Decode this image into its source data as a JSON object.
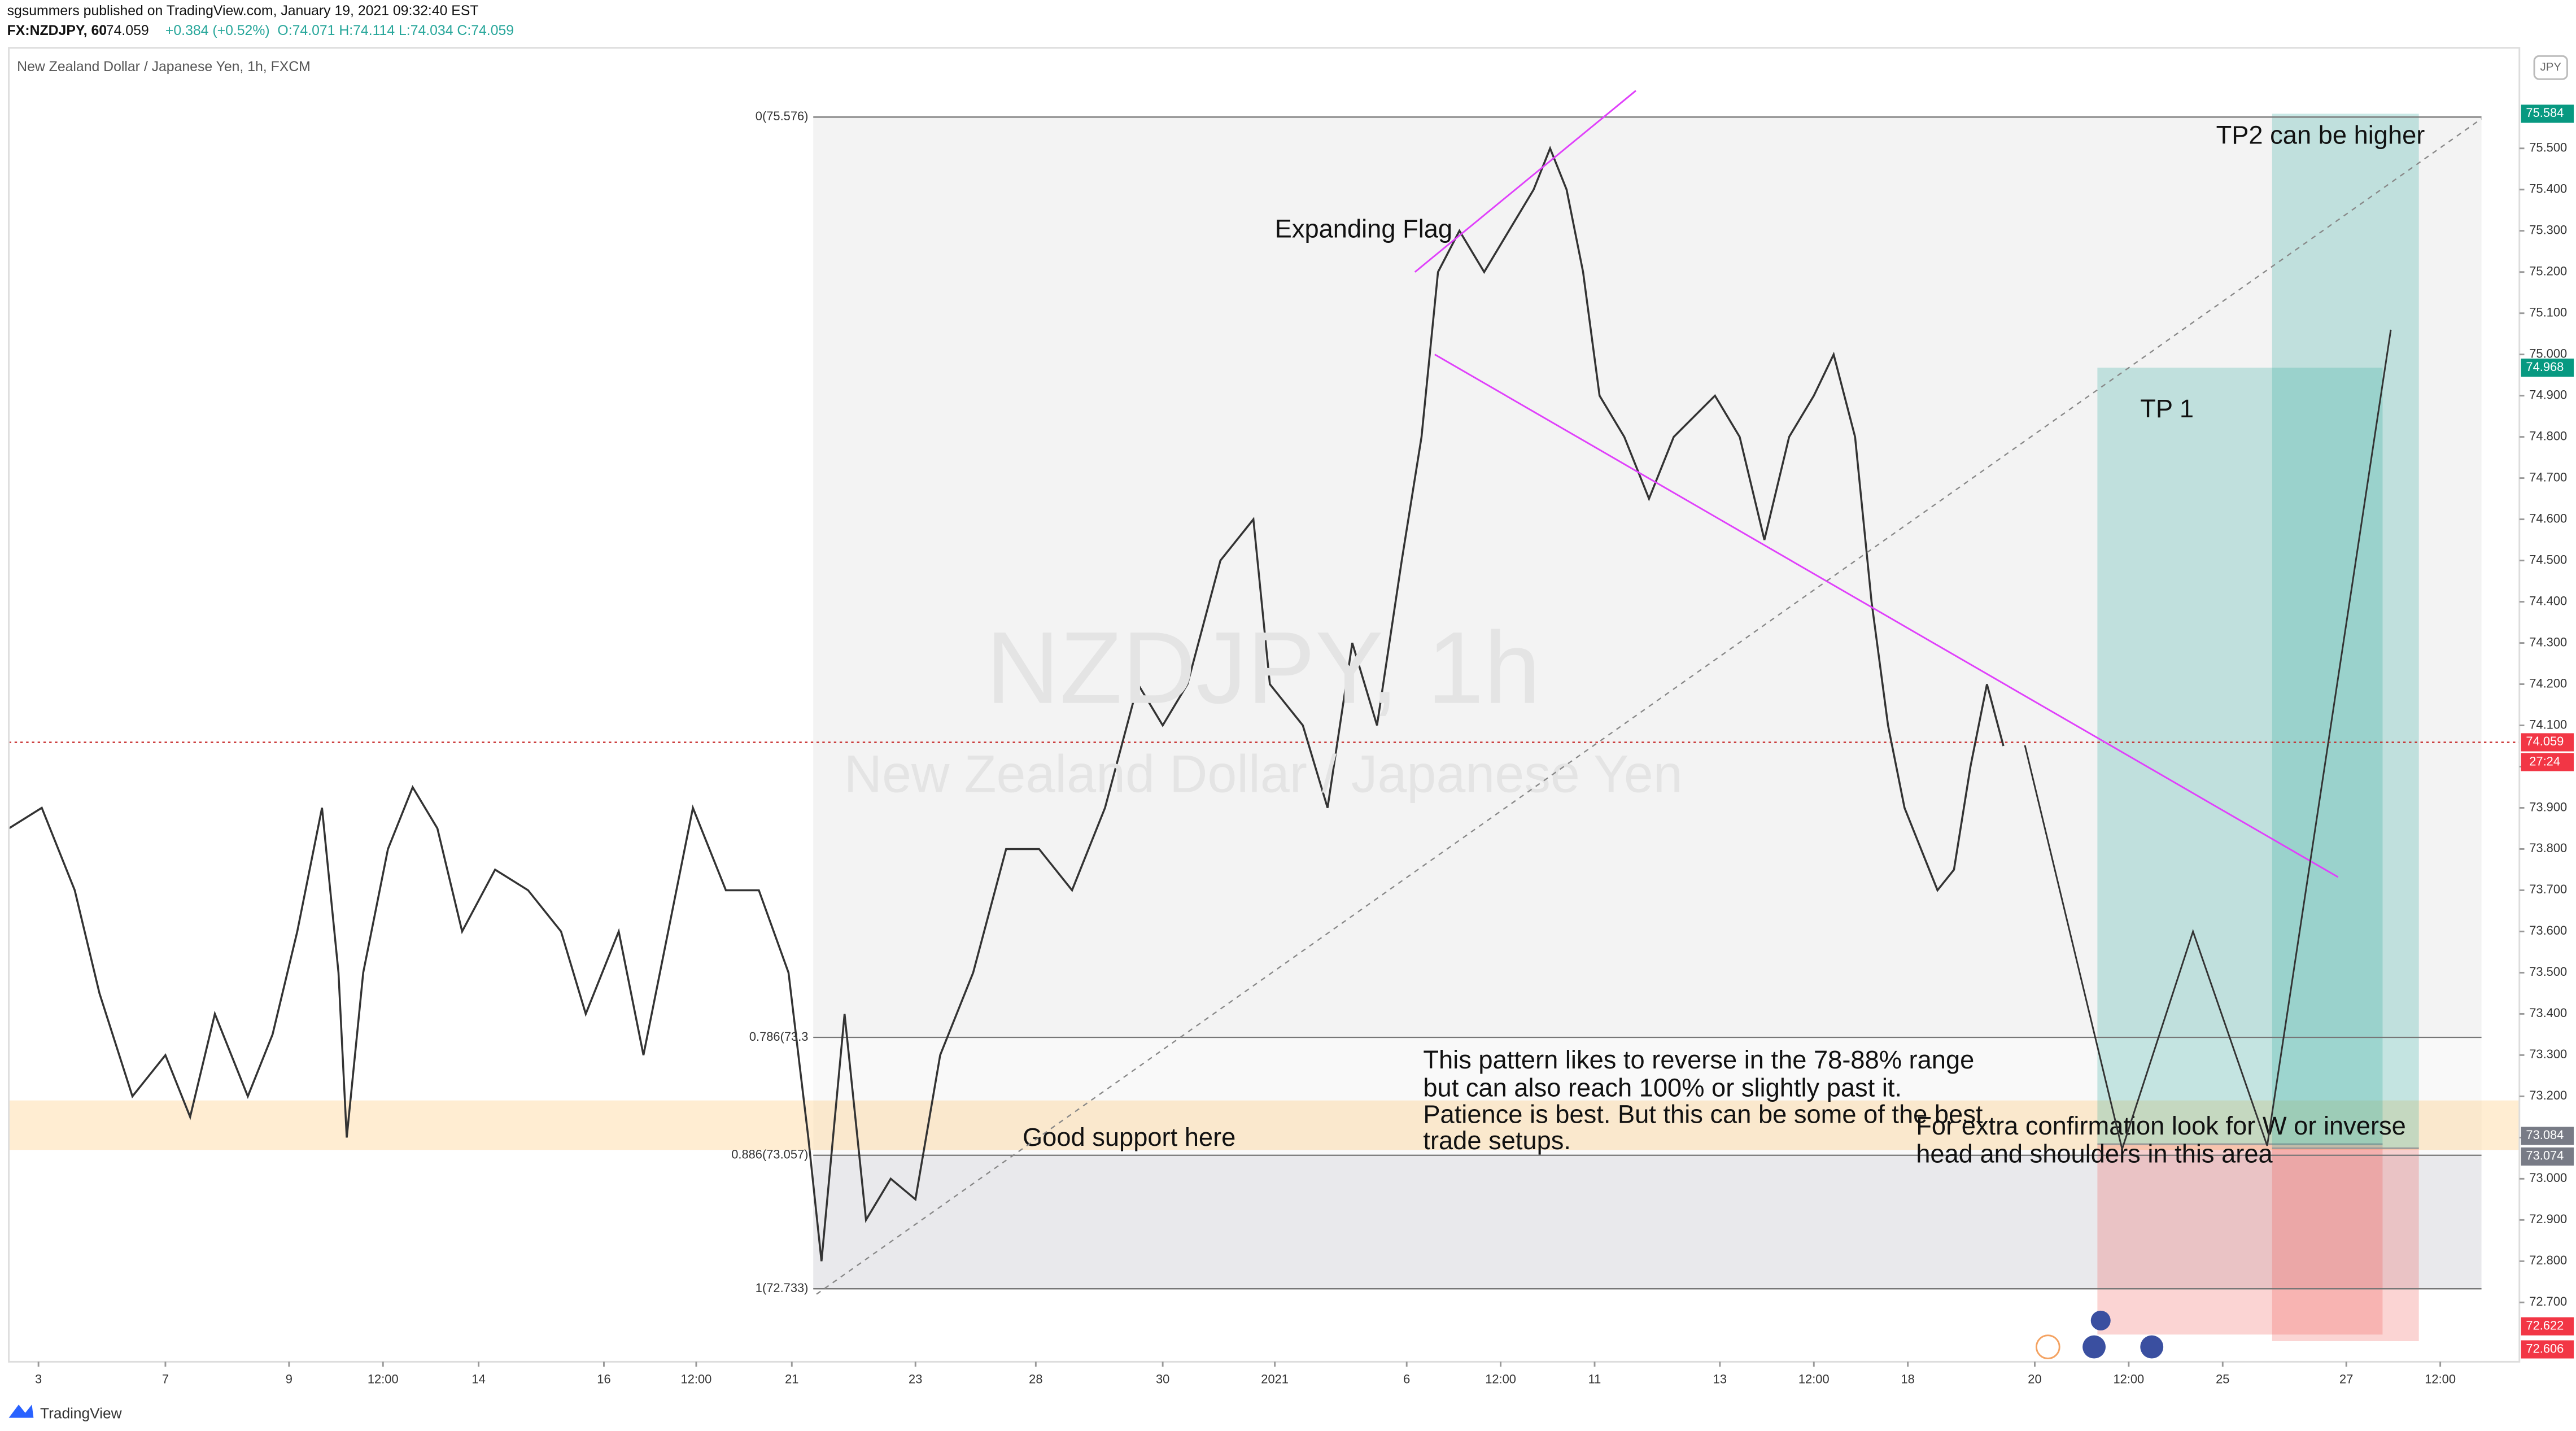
{
  "header": {
    "publisher": "sgsummers published on TradingView.com, January 19, 2021 09:32:40 EST",
    "symbol": "FX:NZDJPY, 60",
    "change": "+0.384 (+0.52%)",
    "ohlc": "O:74.071 H:74.114 L:74.034 C:74.059",
    "currency": "JPY",
    "brand": "TradingView"
  },
  "chart_data": {
    "type": "line",
    "title": "New Zealand Dollar / Japanese Yen, 1h, FXCM",
    "watermark": "NZDJPY, 1h",
    "watermark_sub": "New Zealand Dollar / Japanese Yen",
    "xlim": [
      0,
      1523
    ],
    "ylim": [
      72.56,
      75.74
    ],
    "xticks": [
      {
        "value": 18,
        "label": "3"
      },
      {
        "value": 95,
        "label": "7"
      },
      {
        "value": 170,
        "label": "9"
      },
      {
        "value": 227,
        "label": "12:00"
      },
      {
        "value": 285,
        "label": "14"
      },
      {
        "value": 361,
        "label": "16"
      },
      {
        "value": 417,
        "label": "12:00"
      },
      {
        "value": 475,
        "label": "21"
      },
      {
        "value": 550,
        "label": "23"
      },
      {
        "value": 623,
        "label": "28"
      },
      {
        "value": 700,
        "label": "30"
      },
      {
        "value": 768,
        "label": "2021"
      },
      {
        "value": 848,
        "label": "6"
      },
      {
        "value": 905,
        "label": "12:00"
      },
      {
        "value": 962,
        "label": "11"
      },
      {
        "value": 1038,
        "label": "13"
      },
      {
        "value": 1095,
        "label": "12:00"
      },
      {
        "value": 1152,
        "label": "18"
      },
      {
        "value": 1229,
        "label": "20"
      },
      {
        "value": 1286,
        "label": "12:00"
      },
      {
        "value": 1343,
        "label": "25"
      },
      {
        "value": 1418,
        "label": "27"
      },
      {
        "value": 1475,
        "label": "12:00"
      }
    ],
    "yticks": [
      {
        "value": 72.7,
        "label": "72.700"
      },
      {
        "value": 72.8,
        "label": "72.800"
      },
      {
        "value": 72.9,
        "label": "72.900"
      },
      {
        "value": 73.0,
        "label": "73.000"
      },
      {
        "value": 73.1,
        "label": "73.100"
      },
      {
        "value": 73.2,
        "label": "73.200"
      },
      {
        "value": 73.3,
        "label": "73.300"
      },
      {
        "value": 73.4,
        "label": "73.400"
      },
      {
        "value": 73.5,
        "label": "73.500"
      },
      {
        "value": 73.6,
        "label": "73.600"
      },
      {
        "value": 73.7,
        "label": "73.700"
      },
      {
        "value": 73.8,
        "label": "73.800"
      },
      {
        "value": 73.9,
        "label": "73.900"
      },
      {
        "value": 74.0,
        "label": "74.000"
      },
      {
        "value": 74.1,
        "label": "74.100"
      },
      {
        "value": 74.2,
        "label": "74.200"
      },
      {
        "value": 74.3,
        "label": "74.300"
      },
      {
        "value": 74.4,
        "label": "74.400"
      },
      {
        "value": 74.5,
        "label": "74.500"
      },
      {
        "value": 74.6,
        "label": "74.600"
      },
      {
        "value": 74.7,
        "label": "74.700"
      },
      {
        "value": 74.8,
        "label": "74.800"
      },
      {
        "value": 74.9,
        "label": "74.900"
      },
      {
        "value": 75.0,
        "label": "75.000"
      },
      {
        "value": 75.1,
        "label": "75.100"
      },
      {
        "value": 75.2,
        "label": "75.200"
      },
      {
        "value": 75.3,
        "label": "75.300"
      },
      {
        "value": 75.4,
        "label": "75.400"
      },
      {
        "value": 75.5,
        "label": "75.500"
      }
    ],
    "series": [
      {
        "name": "NZDJPY",
        "color": "#333333",
        "x": [
          0,
          20,
          40,
          55,
          75,
          95,
          110,
          125,
          145,
          160,
          175,
          190,
          200,
          205,
          215,
          230,
          245,
          260,
          275,
          295,
          315,
          335,
          350,
          370,
          385,
          400,
          415,
          435,
          455,
          473,
          485,
          493,
          507,
          520,
          535,
          550,
          565,
          585,
          605,
          625,
          645,
          665,
          685,
          700,
          715,
          735,
          755,
          765,
          785,
          800,
          815,
          830,
          845,
          857,
          867,
          880,
          895,
          910,
          925,
          935,
          945,
          955,
          965,
          980,
          995,
          1010,
          1035,
          1050,
          1065,
          1080,
          1095,
          1107,
          1120,
          1130,
          1140,
          1150,
          1160,
          1170,
          1180,
          1190,
          1200,
          1210
        ],
        "values": [
          73.85,
          73.9,
          73.7,
          73.45,
          73.2,
          73.3,
          73.15,
          73.4,
          73.2,
          73.35,
          73.6,
          73.9,
          73.5,
          73.1,
          73.5,
          73.8,
          73.95,
          73.85,
          73.6,
          73.75,
          73.7,
          73.6,
          73.4,
          73.6,
          73.3,
          73.6,
          73.9,
          73.7,
          73.7,
          73.5,
          73.1,
          72.8,
          73.4,
          72.9,
          73.0,
          72.95,
          73.3,
          73.5,
          73.8,
          73.8,
          73.7,
          73.9,
          74.2,
          74.1,
          74.2,
          74.5,
          74.6,
          74.2,
          74.1,
          73.9,
          74.3,
          74.1,
          74.5,
          74.8,
          75.2,
          75.3,
          75.2,
          75.3,
          75.4,
          75.5,
          75.4,
          75.2,
          74.9,
          74.8,
          74.65,
          74.8,
          74.9,
          74.8,
          74.55,
          74.8,
          74.9,
          75.0,
          74.8,
          74.4,
          74.1,
          73.9,
          73.8,
          73.7,
          73.75,
          74.0,
          74.2,
          74.05
        ]
      }
    ],
    "last_price": 74.059,
    "countdown": "27:24",
    "fib": {
      "x": [
        488,
        1500
      ],
      "levels": [
        {
          "value": 75.576,
          "label": "0(75.576)"
        },
        {
          "value": 73.343,
          "label": "0.786(73.3"
        },
        {
          "value": 73.057,
          "label": "0.886(73.057)"
        },
        {
          "value": 72.733,
          "label": "1(72.733)"
        }
      ]
    },
    "support_zone": [
      73.07,
      73.19
    ],
    "positions": [
      {
        "x": [
          1267,
          1440
        ],
        "target": 74.968,
        "entry": 73.084,
        "stop": 72.622
      },
      {
        "x": [
          1373,
          1462
        ],
        "target": 75.584,
        "entry": 73.074,
        "stop": 72.606
      }
    ],
    "trendlines": [
      {
        "x": [
          853,
          987
        ],
        "values": [
          75.2,
          75.64
        ]
      },
      {
        "x": [
          865,
          1413
        ],
        "values": [
          75.0,
          73.732
        ]
      }
    ],
    "dashed_line": {
      "x": [
        490,
        1500
      ],
      "values": [
        72.72,
        75.572
      ]
    },
    "path_arrow": {
      "x": [
        1223,
        1282,
        1325,
        1370,
        1445
      ],
      "values": [
        74.052,
        73.072,
        73.6,
        73.08,
        75.06
      ]
    },
    "annotations": {
      "flag": "Expanding Flag",
      "tp2": "TP2 can be higher",
      "tp1": "TP 1",
      "support": "Good support here",
      "pattern": [
        "This pattern likes to reverse in the 78-88% range",
        "but can also reach 100% or slightly past it.",
        "Patience is best. But this can be some of the best",
        "trade setups."
      ],
      "confirm": [
        "For extra confirmation look for W or inverse",
        "head and shoulders in this area"
      ]
    }
  }
}
